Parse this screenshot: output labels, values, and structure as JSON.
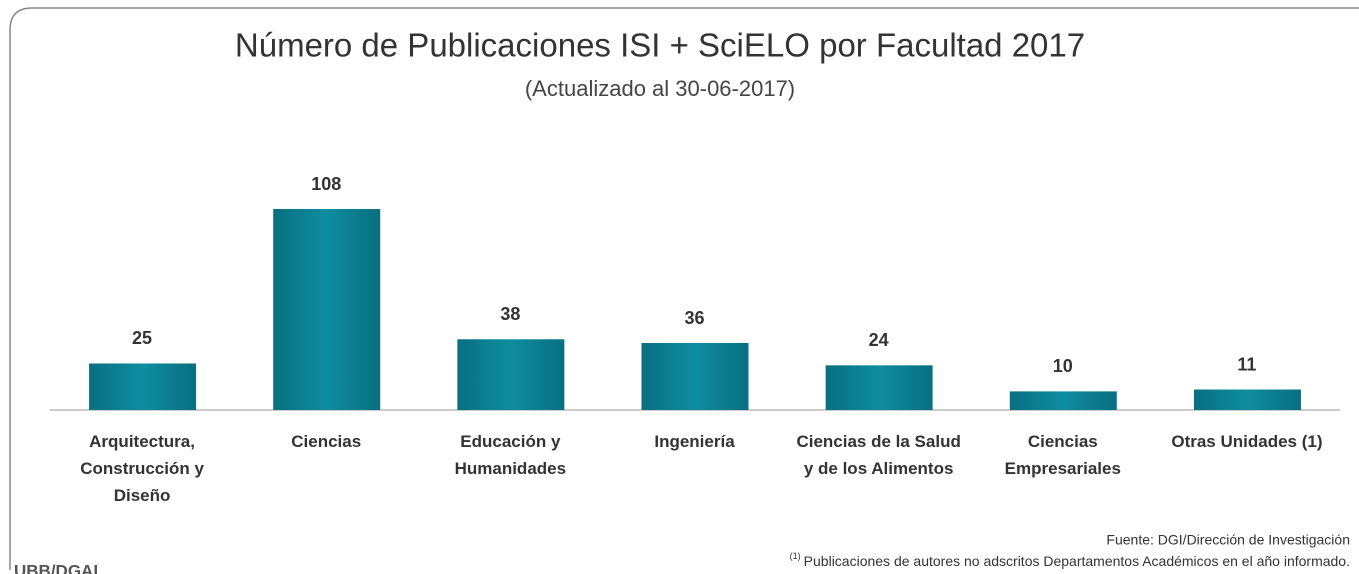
{
  "chart_data": {
    "type": "bar",
    "title": "Número de Publicaciones ISI + SciELO por Facultad 2017",
    "subtitle": "(Actualizado al 30-06-2017)",
    "categories": [
      "Arquitectura, Construcción y Diseño",
      "Ciencias",
      "Educación y Humanidades",
      "Ingeniería",
      "Ciencias de la Salud y de los Alimentos",
      "Ciencias Empresariales",
      "Otras Unidades (1)"
    ],
    "values": [
      25,
      108,
      38,
      36,
      24,
      10,
      11
    ],
    "color": "#0b7f92",
    "ylim": [
      0,
      115
    ],
    "source": "Fuente: DGI/Dirección de Investigación",
    "footnote_marker": "(1)",
    "footnote": "Publicaciones de autores no adscritos Departamentos Académicos en el año informado.",
    "logo_text": "UBB/DGAI"
  }
}
